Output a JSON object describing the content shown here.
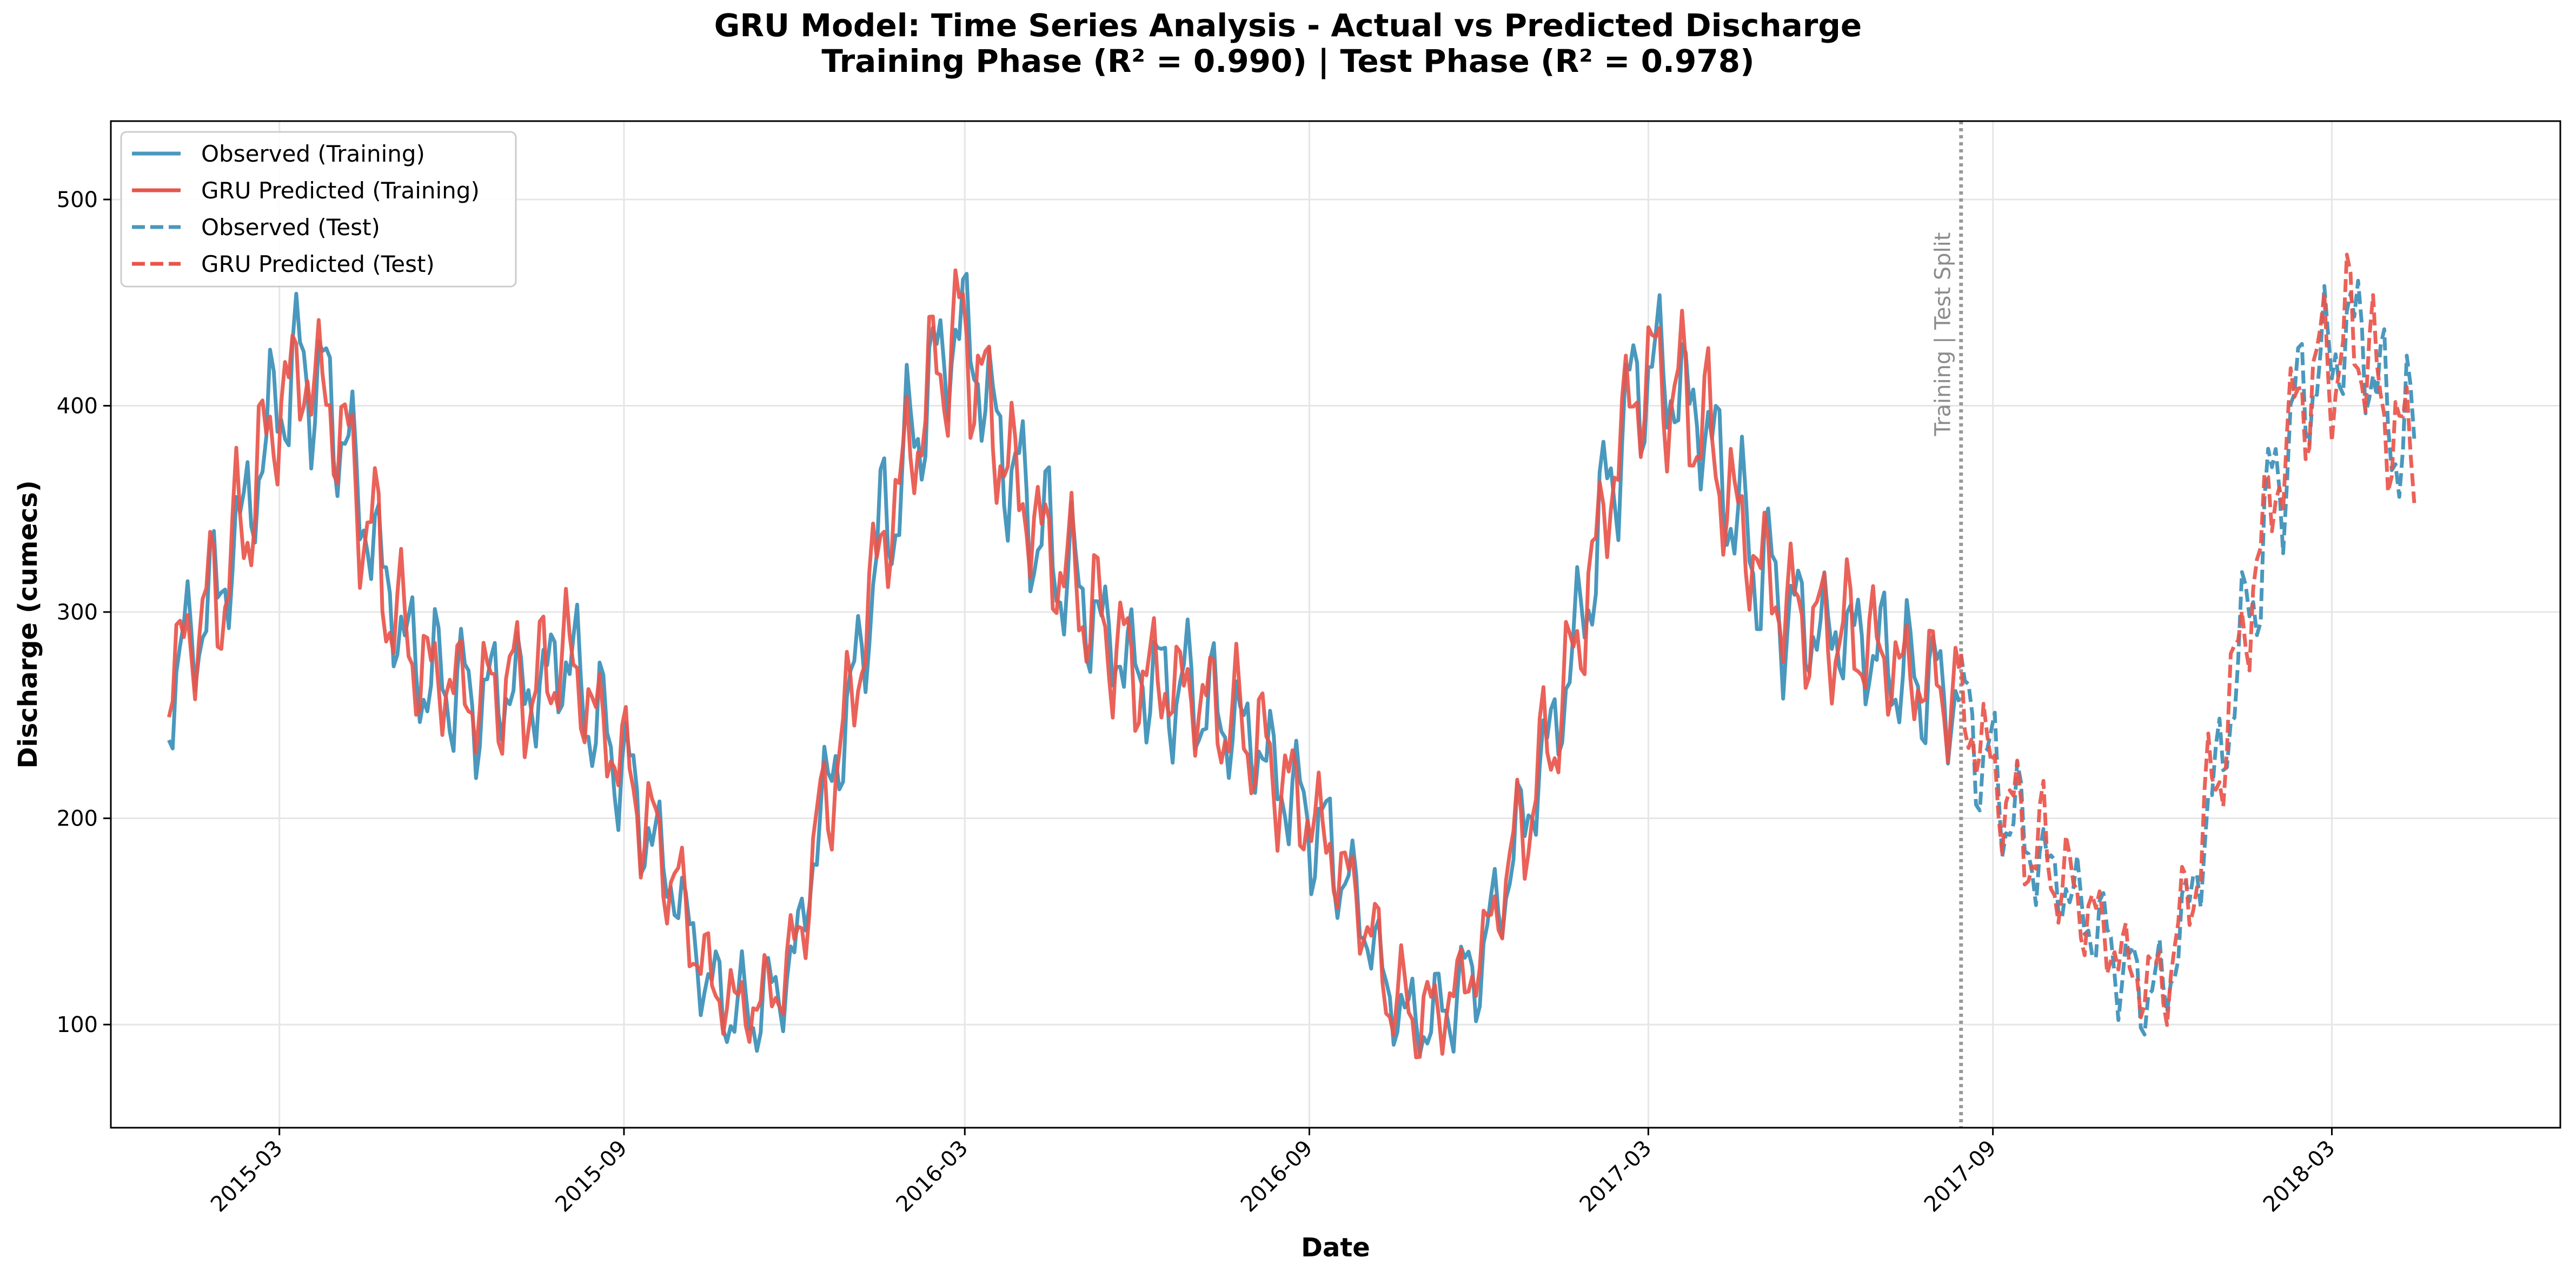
{
  "title": {
    "line1": "GRU Model: Time Series Analysis - Actual vs Predicted Discharge",
    "line2": "Training Phase (R² = 0.990) | Test Phase (R² = 0.978)"
  },
  "colors": {
    "observed": "#4a98bd",
    "predicted": "#e8554b",
    "split": "#999999",
    "grid": "#e6e6e6"
  },
  "chart_data": {
    "type": "line",
    "title": "GRU Model: Time Series Analysis - Actual vs Predicted Discharge",
    "subtitle": "Training Phase (R² = 0.990) | Test Phase (R² = 0.978)",
    "xlabel": "Date",
    "ylabel": "Discharge (cumecs)",
    "xlim": [
      "2014-12-01",
      "2018-07-01"
    ],
    "ylim": [
      50,
      538
    ],
    "x_ticks": [
      "2015-03",
      "2015-09",
      "2016-03",
      "2016-09",
      "2017-03",
      "2017-09",
      "2018-03"
    ],
    "y_ticks": [
      100,
      200,
      300,
      400,
      500
    ],
    "grid": true,
    "legend_position": "top-left",
    "split_date": "2017-08-15",
    "split_label": "Training | Test Split",
    "series": [
      {
        "name": "Observed (Training)",
        "style": "solid",
        "color": "#4a98bd",
        "x": [
          "2015-01-01",
          "2015-01-15",
          "2015-02-01",
          "2015-02-15",
          "2015-03-01",
          "2015-03-15",
          "2015-04-01",
          "2015-04-15",
          "2015-05-01",
          "2015-05-15",
          "2015-06-01",
          "2015-06-15",
          "2015-07-01",
          "2015-07-15",
          "2015-08-01",
          "2015-08-15",
          "2015-09-01",
          "2015-09-15",
          "2015-10-01",
          "2015-10-15",
          "2015-11-01",
          "2015-11-15",
          "2015-12-01",
          "2015-12-15",
          "2016-01-01",
          "2016-01-15",
          "2016-02-01",
          "2016-02-15",
          "2016-03-01",
          "2016-03-15",
          "2016-04-01",
          "2016-04-15",
          "2016-05-01",
          "2016-05-15",
          "2016-06-01",
          "2016-06-15",
          "2016-07-01",
          "2016-07-15",
          "2016-08-01",
          "2016-08-15",
          "2016-09-01",
          "2016-09-15",
          "2016-10-01",
          "2016-10-15",
          "2016-11-01",
          "2016-11-15",
          "2016-12-01",
          "2016-12-15",
          "2017-01-01",
          "2017-01-15",
          "2017-02-01",
          "2017-02-15",
          "2017-03-01",
          "2017-03-15",
          "2017-04-01",
          "2017-04-15",
          "2017-05-01",
          "2017-05-15",
          "2017-06-01",
          "2017-06-15",
          "2017-07-01",
          "2017-07-15",
          "2017-08-01",
          "2017-08-15"
        ],
        "values": [
          265,
          290,
          320,
          360,
          405,
          420,
          395,
          350,
          300,
          270,
          265,
          255,
          265,
          260,
          280,
          250,
          225,
          190,
          160,
          120,
          105,
          110,
          130,
          200,
          260,
          330,
          380,
          420,
          440,
          395,
          355,
          330,
          310,
          290,
          270,
          265,
          260,
          250,
          240,
          220,
          200,
          180,
          150,
          110,
          100,
          110,
          130,
          170,
          220,
          260,
          330,
          390,
          420,
          410,
          390,
          350,
          320,
          300,
          290,
          290,
          280,
          270,
          265,
          255
        ]
      },
      {
        "name": "GRU Predicted (Training)",
        "style": "solid",
        "color": "#e8554b",
        "x": [
          "2015-01-01",
          "2015-01-15",
          "2015-02-01",
          "2015-02-15",
          "2015-03-01",
          "2015-03-15",
          "2015-04-01",
          "2015-04-15",
          "2015-05-01",
          "2015-05-15",
          "2015-06-01",
          "2015-06-15",
          "2015-07-01",
          "2015-07-15",
          "2015-08-01",
          "2015-08-15",
          "2015-09-01",
          "2015-09-15",
          "2015-10-01",
          "2015-10-15",
          "2015-11-01",
          "2015-11-15",
          "2015-12-01",
          "2015-12-15",
          "2016-01-01",
          "2016-01-15",
          "2016-02-01",
          "2016-02-15",
          "2016-03-01",
          "2016-03-15",
          "2016-04-01",
          "2016-04-15",
          "2016-05-01",
          "2016-05-15",
          "2016-06-01",
          "2016-06-15",
          "2016-07-01",
          "2016-07-15",
          "2016-08-01",
          "2016-08-15",
          "2016-09-01",
          "2016-09-15",
          "2016-10-01",
          "2016-10-15",
          "2016-11-01",
          "2016-11-15",
          "2016-12-01",
          "2016-12-15",
          "2017-01-01",
          "2017-01-15",
          "2017-02-01",
          "2017-02-15",
          "2017-03-01",
          "2017-03-15",
          "2017-04-01",
          "2017-04-15",
          "2017-05-01",
          "2017-05-15",
          "2017-06-01",
          "2017-06-15",
          "2017-07-01",
          "2017-07-15",
          "2017-08-01",
          "2017-08-15"
        ],
        "values": [
          268,
          292,
          318,
          358,
          403,
          418,
          393,
          349,
          302,
          272,
          266,
          257,
          266,
          262,
          281,
          252,
          227,
          193,
          163,
          123,
          108,
          112,
          132,
          198,
          258,
          328,
          378,
          418,
          437,
          393,
          354,
          330,
          311,
          291,
          271,
          266,
          261,
          251,
          241,
          221,
          201,
          182,
          152,
          113,
          103,
          112,
          132,
          171,
          219,
          259,
          328,
          388,
          418,
          408,
          388,
          349,
          320,
          301,
          291,
          290,
          281,
          271,
          266,
          256
        ]
      },
      {
        "name": "Observed (Test)",
        "style": "dashed",
        "color": "#4a98bd",
        "x": [
          "2017-08-15",
          "2017-09-01",
          "2017-09-15",
          "2017-10-01",
          "2017-10-15",
          "2017-11-01",
          "2017-11-15",
          "2017-12-01",
          "2017-12-15",
          "2018-01-01",
          "2018-01-15",
          "2018-02-01",
          "2018-02-15",
          "2018-03-01",
          "2018-03-15",
          "2018-04-01",
          "2018-04-15"
        ],
        "values": [
          255,
          220,
          195,
          175,
          160,
          140,
          120,
          115,
          160,
          230,
          300,
          370,
          410,
          425,
          440,
          390,
          380
        ]
      },
      {
        "name": "GRU Predicted (Test)",
        "style": "dashed",
        "color": "#e8554b",
        "x": [
          "2017-08-15",
          "2017-09-01",
          "2017-09-15",
          "2017-10-01",
          "2017-10-15",
          "2017-11-01",
          "2017-11-15",
          "2017-12-01",
          "2017-12-15",
          "2018-01-01",
          "2018-01-15",
          "2018-02-01",
          "2018-02-15",
          "2018-03-01",
          "2018-03-15",
          "2018-04-01",
          "2018-04-15"
        ],
        "values": [
          256,
          222,
          197,
          177,
          163,
          143,
          124,
          119,
          163,
          232,
          302,
          371,
          409,
          423,
          437,
          389,
          379
        ]
      }
    ]
  }
}
